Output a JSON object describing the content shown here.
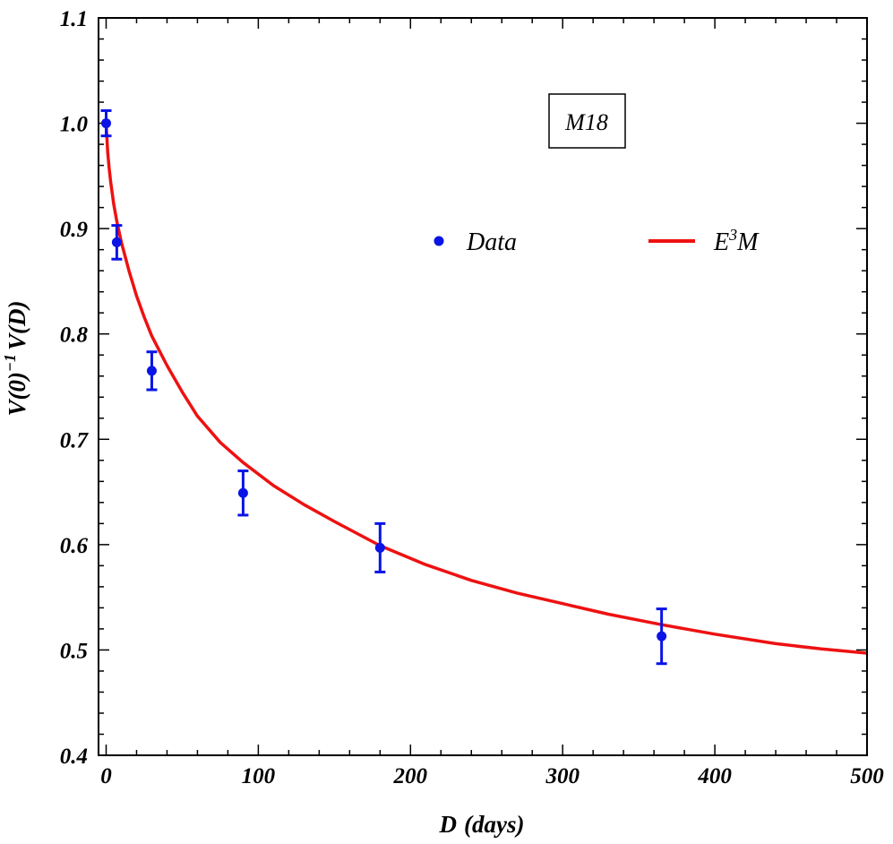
{
  "chart_data": {
    "type": "scatter",
    "xlabel_main": "D",
    "xlabel_unit": "(days)",
    "ylabel_prefix": "V(0)",
    "ylabel_exp": "−1",
    "ylabel_suffix": "V(D)",
    "xlim": [
      -5,
      500
    ],
    "ylim": [
      0.4,
      1.1
    ],
    "x_ticks": [
      0,
      100,
      200,
      300,
      400,
      500
    ],
    "y_ticks": [
      0.4,
      0.5,
      0.6,
      0.7,
      0.8,
      0.9,
      1.0,
      1.1
    ],
    "x_tick_labels": [
      "0",
      "100",
      "200",
      "300",
      "400",
      "500"
    ],
    "y_tick_labels": [
      "0.4",
      "0.5",
      "0.6",
      "0.7",
      "0.8",
      "0.9",
      "1.0",
      "1.1"
    ],
    "annotation": "M18",
    "legend": {
      "placement": "top-right",
      "data_label": "Data",
      "model_label_base": "E",
      "model_label_sup": "3",
      "model_label_tail": "M"
    },
    "series": [
      {
        "name": "Data",
        "kind": "points-with-errorbars",
        "color": "#0a14e6",
        "points": [
          {
            "x": 0,
            "y": 1.0,
            "err": 0.012
          },
          {
            "x": 7,
            "y": 0.887,
            "err": 0.016
          },
          {
            "x": 30,
            "y": 0.765,
            "err": 0.018
          },
          {
            "x": 90,
            "y": 0.649,
            "err": 0.021
          },
          {
            "x": 180,
            "y": 0.597,
            "err": 0.023
          },
          {
            "x": 365,
            "y": 0.513,
            "err": 0.026
          }
        ]
      },
      {
        "name": "E3M",
        "kind": "line",
        "color": "#ee1111",
        "x": [
          0,
          1,
          2,
          3,
          5,
          7,
          10,
          15,
          20,
          25,
          30,
          40,
          50,
          60,
          75,
          90,
          110,
          130,
          150,
          180,
          210,
          240,
          270,
          300,
          330,
          365,
          400,
          440,
          470,
          500
        ],
        "y": [
          1.0,
          0.973,
          0.957,
          0.944,
          0.923,
          0.907,
          0.887,
          0.86,
          0.836,
          0.816,
          0.798,
          0.77,
          0.745,
          0.722,
          0.697,
          0.678,
          0.656,
          0.638,
          0.622,
          0.599,
          0.581,
          0.566,
          0.554,
          0.544,
          0.534,
          0.524,
          0.515,
          0.506,
          0.501,
          0.497
        ]
      }
    ],
    "colors": {
      "data": "#0a14e6",
      "model": "#ee1111",
      "frame": "#000000"
    }
  }
}
